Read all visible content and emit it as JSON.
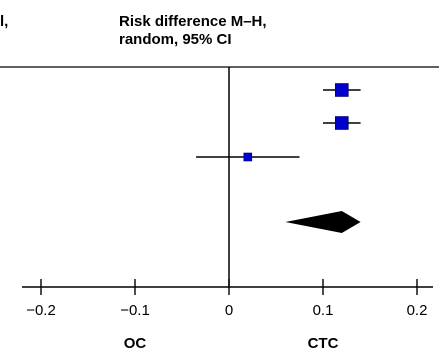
{
  "header": {
    "left_fragment": "l,",
    "title_line1": "Risk difference M–H,",
    "title_line2": "random, 95% CI"
  },
  "chart_data": {
    "type": "forest",
    "title": "Risk difference M–H, random, 95% CI",
    "xlim": [
      -0.22,
      0.22
    ],
    "studies": [
      {
        "estimate": 0.12,
        "ci_low": 0.1,
        "ci_high": 0.14,
        "weight": "large"
      },
      {
        "estimate": 0.12,
        "ci_low": 0.1,
        "ci_high": 0.14,
        "weight": "large"
      },
      {
        "estimate": 0.02,
        "ci_low": -0.035,
        "ci_high": 0.075,
        "weight": "small"
      }
    ],
    "pooled": {
      "estimate": 0.12,
      "ci_low": 0.06,
      "ci_high": 0.14
    },
    "x_ticks": [
      -0.2,
      -0.1,
      0,
      0.1,
      0.2
    ],
    "x_tick_labels": [
      "−0.2",
      "−0.1",
      "0",
      "0.1",
      "0.2"
    ],
    "side_labels": {
      "left": "OC",
      "right": "CTC"
    },
    "colors": {
      "study_marker": "#0000cc",
      "pooled_diamond": "#000000",
      "lines": "#000000"
    }
  }
}
